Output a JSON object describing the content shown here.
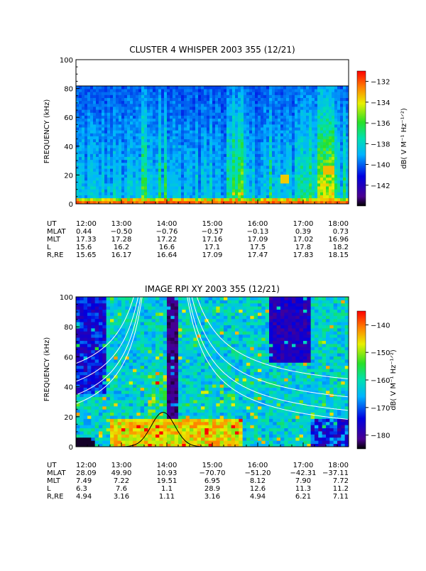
{
  "chart_data": [
    {
      "type": "heatmap",
      "title": "CLUSTER 4 WHISPER 2003 355 (12/21)",
      "ylabel": "FREQUENCY (kHz)",
      "ylim": [
        0,
        100
      ],
      "yticks": [
        "0",
        "20",
        "40",
        "60",
        "80",
        "100"
      ],
      "data_ceiling_khz": 80,
      "colorbar": {
        "label": "dB( V M⁻¹ Hz⁻¹ᐟ²)",
        "ticks": [
          "-132",
          "-134",
          "-136",
          "-138",
          "-140",
          "-142"
        ],
        "range": [
          -144,
          -131
        ],
        "scale": "rainbow"
      },
      "ephemeris": {
        "rows": [
          "UT",
          "MLAT",
          "MLT",
          "L",
          "R,RE"
        ],
        "columns": [
          [
            "12:00",
            "0.44",
            "17.33",
            "15.6",
            "15.65"
          ],
          [
            "13:00",
            "-0.50",
            "17.28",
            "16.2",
            "16.17"
          ],
          [
            "14:00",
            "-0.76",
            "17.22",
            "16.6",
            "16.64"
          ],
          [
            "15:00",
            "-0.57",
            "17.16",
            "17.1",
            "17.09"
          ],
          [
            "16:00",
            "-0.13",
            "17.09",
            "17.5",
            "17.47"
          ],
          [
            "17:00",
            "0.39",
            "17.02",
            "17.8",
            "17.83"
          ],
          [
            "18:00",
            "0.73",
            "16.96",
            "18.2",
            "18.15"
          ]
        ]
      }
    },
    {
      "type": "heatmap",
      "title": "IMAGE RPI XY 2003 355 (12/21)",
      "ylabel": "FREQUENCY (kHz)",
      "ylim": [
        0,
        100
      ],
      "yticks": [
        "0",
        "20",
        "40",
        "60",
        "80",
        "100"
      ],
      "colorbar": {
        "label": "dB( V M⁻¹ Hz⁻¹ᐟ²)",
        "ticks": [
          "-140",
          "-150",
          "-160",
          "-170",
          "-180"
        ],
        "range": [
          -185,
          -135
        ],
        "scale": "rainbow"
      },
      "overlay_curve_peak": {
        "time": "13:55",
        "freq_khz": 23
      },
      "ephemeris": {
        "rows": [
          "UT",
          "MLAT",
          "MLT",
          "L",
          "R,RE"
        ],
        "columns": [
          [
            "12:00",
            "28.09",
            "7.49",
            "6.3",
            "4.94"
          ],
          [
            "13:00",
            "49.90",
            "7.22",
            "7.6",
            "3.16"
          ],
          [
            "14:00",
            "10.93",
            "19.51",
            "1.1",
            "1.11"
          ],
          [
            "15:00",
            "-70.70",
            "6.95",
            "28.9",
            "3.16"
          ],
          [
            "16:00",
            "-51.20",
            "8.12",
            "12.6",
            "4.94"
          ],
          [
            "17:00",
            "-42.31",
            "7.90",
            "11.3",
            "6.21"
          ],
          [
            "18:00",
            "-37.11",
            "7.72",
            "11.2",
            "7.11"
          ]
        ]
      }
    }
  ]
}
